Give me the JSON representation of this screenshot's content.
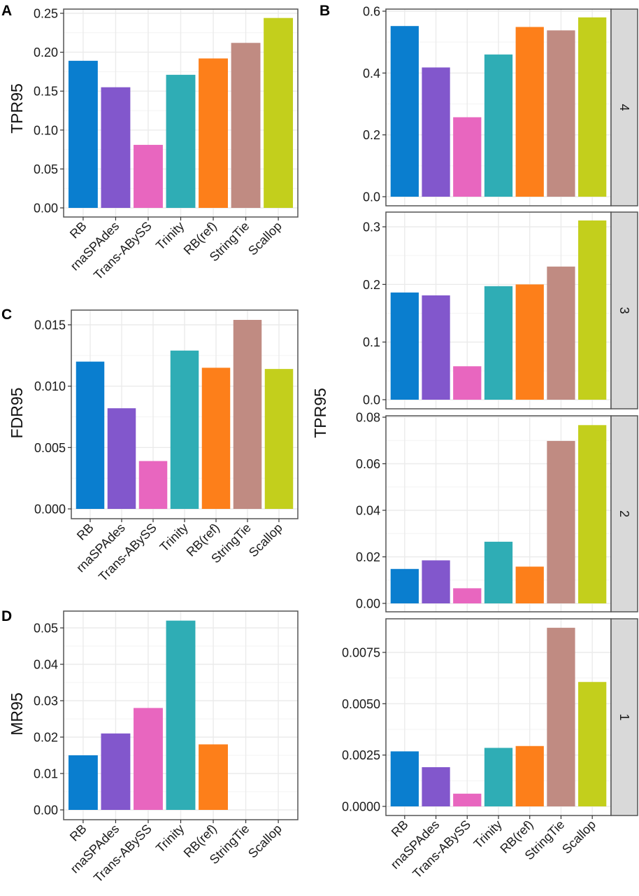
{
  "figure": {
    "colors": {
      "RB": "#0a7ecf",
      "rnaSPAdes": "#8257cc",
      "Trans-ABySS": "#e866bf",
      "Trinity": "#2fadb5",
      "RB(ref)": "#fd7f1a",
      "StringTie": "#c08b82",
      "Scallop": "#c3cf1c"
    },
    "panel_bg": "#ffffff",
    "grid_color": "#ebebeb",
    "border_color": "#555555",
    "strip_fill": "#d9d9d9"
  },
  "chart_data": [
    {
      "id": "A",
      "tag": "A",
      "type": "bar",
      "title": "",
      "xlabel": "",
      "ylabel": "TPR95",
      "categories": [
        "RB",
        "rnaSPAdes",
        "Trans-ABySS",
        "Trinity",
        "RB(ref)",
        "StringTie",
        "Scallop"
      ],
      "values": [
        0.189,
        0.155,
        0.081,
        0.171,
        0.192,
        0.212,
        0.244
      ],
      "ylim": [
        0,
        0.25
      ],
      "yticks": [
        0.0,
        0.05,
        0.1,
        0.15,
        0.2,
        0.25
      ],
      "ytick_labels": [
        "0.00",
        "0.05",
        "0.10",
        "0.15",
        "0.20",
        "0.25"
      ],
      "grid": true,
      "legend": "none"
    },
    {
      "id": "C",
      "tag": "C",
      "type": "bar",
      "title": "",
      "xlabel": "",
      "ylabel": "FDR95",
      "categories": [
        "RB",
        "rnaSPAdes",
        "Trans-ABySS",
        "Trinity",
        "RB(ref)",
        "StringTie",
        "Scallop"
      ],
      "values": [
        0.012,
        0.0082,
        0.0039,
        0.0129,
        0.0115,
        0.0154,
        0.0114
      ],
      "ylim": [
        0,
        0.015
      ],
      "yticks": [
        0.0,
        0.005,
        0.01,
        0.015
      ],
      "ytick_labels": [
        "0.000",
        "0.005",
        "0.010",
        "0.015"
      ],
      "grid": true,
      "legend": "none"
    },
    {
      "id": "D",
      "tag": "D",
      "type": "bar",
      "title": "",
      "xlabel": "",
      "ylabel": "MR95",
      "categories": [
        "RB",
        "rnaSPAdes",
        "Trans-ABySS",
        "Trinity",
        "RB(ref)",
        "StringTie",
        "Scallop"
      ],
      "values": [
        0.015,
        0.021,
        0.028,
        0.052,
        0.018,
        0,
        0
      ],
      "ylim": [
        0,
        0.05
      ],
      "yticks": [
        0.0,
        0.01,
        0.02,
        0.03,
        0.04,
        0.05
      ],
      "ytick_labels": [
        "0.00",
        "0.01",
        "0.02",
        "0.03",
        "0.04",
        "0.05"
      ],
      "grid": true,
      "legend": "none"
    },
    {
      "id": "B",
      "tag": "B",
      "type": "bar",
      "title": "",
      "xlabel": "",
      "ylabel": "TPR95",
      "faceted": "rows",
      "categories": [
        "RB",
        "rnaSPAdes",
        "Trans-ABySS",
        "Trinity",
        "RB(ref)",
        "StringTie",
        "Scallop"
      ],
      "facets": [
        {
          "strip": "4",
          "values": [
            0.552,
            0.418,
            0.257,
            0.46,
            0.549,
            0.538,
            0.58
          ],
          "ylim": [
            0,
            0.6
          ],
          "yticks": [
            0.0,
            0.2,
            0.4,
            0.6
          ],
          "ytick_labels": [
            "0.0",
            "0.2",
            "0.4",
            "0.6"
          ]
        },
        {
          "strip": "3",
          "values": [
            0.186,
            0.181,
            0.058,
            0.197,
            0.2,
            0.231,
            0.311
          ],
          "ylim": [
            0,
            0.3
          ],
          "yticks": [
            0.0,
            0.1,
            0.2,
            0.3
          ],
          "ytick_labels": [
            "0.0",
            "0.1",
            "0.2",
            "0.3"
          ]
        },
        {
          "strip": "2",
          "values": [
            0.0148,
            0.0185,
            0.0065,
            0.0265,
            0.0158,
            0.0698,
            0.0766
          ],
          "ylim": [
            0,
            0.08
          ],
          "yticks": [
            0.0,
            0.02,
            0.04,
            0.06,
            0.08
          ],
          "ytick_labels": [
            "0.00",
            "0.02",
            "0.04",
            "0.06",
            "0.08"
          ]
        },
        {
          "strip": "1",
          "values": [
            0.00268,
            0.00191,
            0.00062,
            0.00285,
            0.00294,
            0.0087,
            0.00606
          ],
          "ylim": [
            0,
            0.0075
          ],
          "yticks": [
            0.0,
            0.0025,
            0.005,
            0.0075
          ],
          "ytick_labels": [
            "0.0000",
            "0.0025",
            "0.0050",
            "0.0075"
          ]
        }
      ],
      "grid": true,
      "legend": "none"
    }
  ]
}
